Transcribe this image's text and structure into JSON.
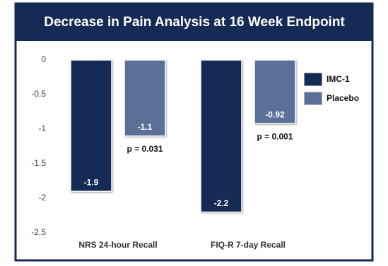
{
  "chart_data": {
    "type": "bar",
    "title": "Decrease in Pain Analysis at 16 Week Endpoint",
    "categories": [
      "NRS 24-hour Recall",
      "FIQ-R 7-day Recall"
    ],
    "series": [
      {
        "name": "IMC-1",
        "color": "#152a55",
        "values": [
          -1.9,
          -2.2
        ]
      },
      {
        "name": "Placebo",
        "color": "#5c6f96",
        "values": [
          -1.1,
          -0.92
        ]
      }
    ],
    "annotations": [
      "p = 0.031",
      "p = 0.001"
    ],
    "ylim": [
      -2.5,
      0
    ],
    "yticks": [
      0,
      -0.5,
      -1,
      -1.5,
      -2,
      -2.5
    ],
    "grid": false
  }
}
